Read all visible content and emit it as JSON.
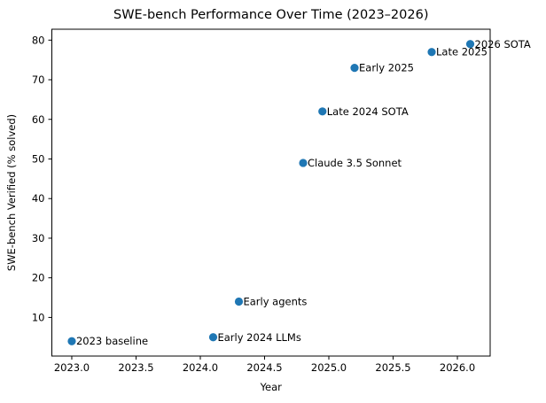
{
  "chart_data": {
    "type": "scatter",
    "title": "SWE-bench Performance Over Time (2023–2026)",
    "xlabel": "Year",
    "ylabel": "SWE-bench Verified (% solved)",
    "xlim": [
      2022.845,
      2026.255
    ],
    "ylim": [
      0.25,
      82.75
    ],
    "xticks": [
      2023.0,
      2023.5,
      2024.0,
      2024.5,
      2025.0,
      2025.5,
      2026.0
    ],
    "yticks": [
      10,
      20,
      30,
      40,
      50,
      60,
      70,
      80
    ],
    "grid": false,
    "legend": false,
    "marker_color": "#1f77b4",
    "axis_color": "#000000",
    "points": [
      {
        "x": 2023.0,
        "y": 4,
        "label": "2023 baseline"
      },
      {
        "x": 2024.1,
        "y": 5,
        "label": "Early 2024 LLMs"
      },
      {
        "x": 2024.3,
        "y": 14,
        "label": "Early agents"
      },
      {
        "x": 2024.8,
        "y": 49,
        "label": "Claude 3.5 Sonnet"
      },
      {
        "x": 2024.95,
        "y": 62,
        "label": "Late 2024 SOTA"
      },
      {
        "x": 2025.2,
        "y": 73,
        "label": "Early 2025"
      },
      {
        "x": 2025.8,
        "y": 77,
        "label": "Late 2025"
      },
      {
        "x": 2026.1,
        "y": 79,
        "label": "2026 SOTA"
      }
    ]
  }
}
